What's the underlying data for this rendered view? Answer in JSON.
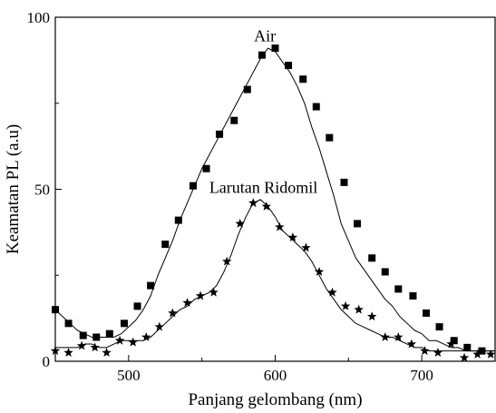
{
  "chart_data": {
    "type": "line",
    "title": "",
    "xlabel": "Panjang gelombang (nm)",
    "ylabel": "Keamatan PL (a.u)",
    "xlim": [
      450,
      750
    ],
    "ylim": [
      0,
      100
    ],
    "xticks": [
      500,
      600,
      700
    ],
    "yticks": [
      0,
      50,
      100
    ],
    "grid": false,
    "legend": "none",
    "series": [
      {
        "name": "Air",
        "marker": "square",
        "color": "#000000",
        "line_x": [
          450,
          455,
          460,
          465,
          470,
          475,
          480,
          485,
          490,
          495,
          500,
          505,
          510,
          515,
          520,
          525,
          530,
          535,
          540,
          545,
          550,
          555,
          560,
          565,
          570,
          575,
          580,
          585,
          590,
          595,
          600,
          605,
          610,
          615,
          620,
          625,
          630,
          635,
          640,
          645,
          650,
          655,
          660,
          665,
          670,
          675,
          680,
          685,
          690,
          695,
          700,
          705,
          710,
          715,
          720,
          725,
          730,
          735,
          740,
          745,
          750
        ],
        "line_y": [
          15,
          13,
          11,
          9,
          8,
          7,
          7,
          7,
          7,
          8,
          10,
          12,
          15,
          19,
          25,
          30,
          35,
          41,
          46,
          51,
          56,
          60,
          64,
          68,
          72,
          76,
          80,
          84,
          88,
          91,
          90,
          87,
          84,
          80,
          75,
          68,
          62,
          55,
          48,
          40,
          35,
          30,
          27,
          24,
          21,
          18,
          16,
          13,
          11,
          9,
          8,
          6,
          6,
          5,
          4,
          4,
          3,
          3,
          3,
          3,
          3
        ],
        "markers_x": [
          450,
          459,
          469,
          478,
          487,
          497,
          506,
          515,
          525,
          534,
          544,
          553,
          562,
          572,
          581,
          591,
          600,
          609,
          619,
          628,
          637,
          647,
          656,
          666,
          675,
          684,
          694,
          703,
          712,
          722,
          731,
          741
        ],
        "markers_y": [
          15,
          11,
          7.5,
          7,
          8,
          11,
          16,
          22,
          34,
          41,
          51,
          56,
          66,
          70,
          79,
          89,
          91,
          86,
          82,
          74,
          65,
          52,
          40,
          30,
          26,
          21,
          19,
          14,
          10,
          6,
          4,
          3
        ]
      },
      {
        "name": "Larutan Ridomil",
        "marker": "star",
        "color": "#000000",
        "line_x": [
          450,
          455,
          460,
          465,
          470,
          475,
          480,
          485,
          490,
          495,
          500,
          505,
          510,
          515,
          520,
          525,
          530,
          535,
          540,
          545,
          550,
          555,
          560,
          565,
          570,
          575,
          580,
          585,
          590,
          595,
          600,
          605,
          610,
          615,
          620,
          625,
          630,
          635,
          640,
          645,
          650,
          655,
          660,
          665,
          670,
          675,
          680,
          685,
          690,
          695,
          700,
          705,
          710,
          715,
          720,
          725,
          730,
          735,
          740,
          745,
          750
        ],
        "line_y": [
          4,
          4,
          4,
          4,
          5,
          5,
          4,
          4,
          5,
          6,
          6,
          6,
          6,
          7,
          9,
          11,
          13,
          15,
          16,
          18,
          19,
          20,
          22,
          26,
          31,
          37,
          42,
          46,
          47,
          45,
          42,
          38,
          36,
          34,
          32,
          29,
          25,
          21,
          18,
          15,
          13,
          11,
          10,
          9,
          8,
          7,
          7,
          6,
          5,
          4,
          4,
          3,
          3,
          3,
          3,
          3,
          3,
          3,
          3,
          3,
          3
        ],
        "markers_x": [
          450,
          459,
          468,
          477,
          485,
          494,
          503,
          512,
          521,
          530,
          540,
          549,
          558,
          567,
          576,
          585,
          594,
          603,
          612,
          621,
          630,
          639,
          648,
          657,
          666,
          675,
          684,
          693,
          702,
          711,
          720,
          729,
          738,
          747
        ],
        "markers_y": [
          3,
          2.5,
          4.5,
          4,
          2.5,
          6,
          5.5,
          7,
          10,
          14,
          17,
          19,
          20,
          29,
          40,
          46,
          45,
          39,
          36,
          33,
          26,
          20,
          16,
          15,
          13,
          7,
          7,
          5,
          3,
          2.5,
          5,
          1,
          2,
          2
        ]
      }
    ],
    "annotations": [
      {
        "text": "Air",
        "x": 593,
        "y": 93
      },
      {
        "text": "Larutan Ridomil",
        "x": 592,
        "y": 49
      }
    ]
  }
}
